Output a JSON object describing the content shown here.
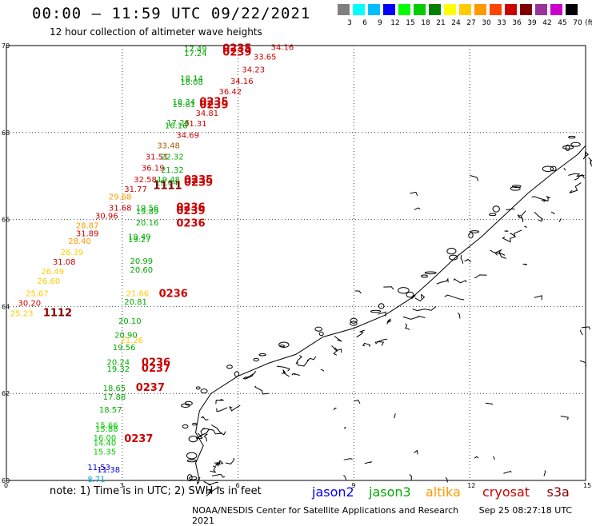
{
  "header": {
    "title": "00:00 – 11:59 UTC 09/22/2021",
    "subtitle": "12 hour collection of altimeter wave heights"
  },
  "scale": {
    "unit": "(ft)",
    "labels": [
      "3",
      "6",
      "9",
      "12",
      "15",
      "18",
      "21",
      "24",
      "27",
      "30",
      "33",
      "36",
      "39",
      "42",
      "45",
      "70"
    ],
    "colors": [
      "#808080",
      "#00ffff",
      "#00bfff",
      "#0000ff",
      "#00ff00",
      "#00cc00",
      "#008000",
      "#ffff00",
      "#ffcc00",
      "#ff9900",
      "#ff4500",
      "#cc0000",
      "#800000",
      "#993399",
      "#cc00cc",
      "#000000"
    ]
  },
  "map": {
    "lat_labels": [
      "70",
      "68",
      "66",
      "64",
      "62",
      "60"
    ],
    "lon_labels": [
      "0",
      "3",
      "6",
      "9",
      "12",
      "15"
    ],
    "points": [
      {
        "t": "34.16",
        "c": "#cc0000",
        "lon": 6.85,
        "lat": 69.9
      },
      {
        "t": "17.49",
        "c": "#00aa00",
        "lon": 4.6,
        "lat": 69.86
      },
      {
        "t": "0235",
        "c": "#cc0000",
        "lon": 5.6,
        "lat": 69.86,
        "b": 1
      },
      {
        "t": "17.24",
        "c": "#00aa00",
        "lon": 4.6,
        "lat": 69.76
      },
      {
        "t": "0239",
        "c": "#cc0000",
        "lon": 5.6,
        "lat": 69.77,
        "b": 1
      },
      {
        "t": "33.65",
        "c": "#cc0000",
        "lon": 6.4,
        "lat": 69.68
      },
      {
        "t": "34.23",
        "c": "#cc0000",
        "lon": 6.1,
        "lat": 69.38
      },
      {
        "t": "18.14",
        "c": "#00aa00",
        "lon": 4.5,
        "lat": 69.18
      },
      {
        "t": "18.08",
        "c": "#00aa00",
        "lon": 4.5,
        "lat": 69.1
      },
      {
        "t": "34.16",
        "c": "#cc0000",
        "lon": 5.8,
        "lat": 69.12
      },
      {
        "t": "36.42",
        "c": "#cc0000",
        "lon": 5.5,
        "lat": 68.88
      },
      {
        "t": "18.34",
        "c": "#00aa00",
        "lon": 4.3,
        "lat": 68.64
      },
      {
        "t": "0235",
        "c": "#cc0000",
        "lon": 5.0,
        "lat": 68.63,
        "b": 1
      },
      {
        "t": "15.81",
        "c": "#00aa00",
        "lon": 4.3,
        "lat": 68.58
      },
      {
        "t": "0239",
        "c": "#cc0000",
        "lon": 5.0,
        "lat": 68.56,
        "b": 1
      },
      {
        "t": "34.81",
        "c": "#cc0000",
        "lon": 4.9,
        "lat": 68.38
      },
      {
        "t": "17.26",
        "c": "#00aa00",
        "lon": 4.15,
        "lat": 68.16
      },
      {
        "t": "31.31",
        "c": "#cc0000",
        "lon": 4.6,
        "lat": 68.14
      },
      {
        "t": "16.16",
        "c": "#00aa00",
        "lon": 4.1,
        "lat": 68.1
      },
      {
        "t": "34.69",
        "c": "#cc0000",
        "lon": 4.4,
        "lat": 67.88
      },
      {
        "t": "33.48",
        "c": "#aa5500",
        "lon": 3.9,
        "lat": 67.64
      },
      {
        "t": "31.51",
        "c": "#cc0000",
        "lon": 3.6,
        "lat": 67.38
      },
      {
        "t": "22.32",
        "c": "#00aa00",
        "lon": 4.0,
        "lat": 67.38
      },
      {
        "t": "36.19",
        "c": "#cc0000",
        "lon": 3.5,
        "lat": 67.12
      },
      {
        "t": "21.32",
        "c": "#00aa00",
        "lon": 4.0,
        "lat": 67.08
      },
      {
        "t": "32.58",
        "c": "#cc0000",
        "lon": 3.3,
        "lat": 66.86
      },
      {
        "t": "19.48",
        "c": "#00aa00",
        "lon": 3.9,
        "lat": 66.86
      },
      {
        "t": "0235",
        "c": "#cc0000",
        "lon": 4.6,
        "lat": 66.84,
        "b": 1
      },
      {
        "t": "19.04",
        "c": "#00aa00",
        "lon": 3.85,
        "lat": 66.78
      },
      {
        "t": "0239",
        "c": "#cc0000",
        "lon": 4.6,
        "lat": 66.77,
        "b": 1
      },
      {
        "t": "1111",
        "c": "#880000",
        "lon": 3.8,
        "lat": 66.7,
        "b": 1
      },
      {
        "t": "31.77",
        "c": "#cc0000",
        "lon": 3.05,
        "lat": 66.64
      },
      {
        "t": "29.68",
        "c": "#ff9900",
        "lon": 2.65,
        "lat": 66.46
      },
      {
        "t": "31.68",
        "c": "#cc0000",
        "lon": 2.65,
        "lat": 66.2
      },
      {
        "t": "19.56",
        "c": "#00aa00",
        "lon": 3.35,
        "lat": 66.2
      },
      {
        "t": "0236",
        "c": "#cc0000",
        "lon": 4.4,
        "lat": 66.2,
        "b": 1
      },
      {
        "t": "19.89",
        "c": "#00aa00",
        "lon": 3.35,
        "lat": 66.12
      },
      {
        "t": "0239",
        "c": "#cc0000",
        "lon": 4.4,
        "lat": 66.12,
        "b": 1
      },
      {
        "t": "30.96",
        "c": "#cc0000",
        "lon": 2.3,
        "lat": 66.02
      },
      {
        "t": "28.87",
        "c": "#ff9900",
        "lon": 1.8,
        "lat": 65.8
      },
      {
        "t": "20.16",
        "c": "#00aa00",
        "lon": 3.35,
        "lat": 65.86
      },
      {
        "t": "0236",
        "c": "#cc0000",
        "lon": 4.4,
        "lat": 65.84,
        "b": 1
      },
      {
        "t": "31.89",
        "c": "#cc0000",
        "lon": 1.8,
        "lat": 65.62
      },
      {
        "t": "19.49",
        "c": "#00aa00",
        "lon": 3.15,
        "lat": 65.54
      },
      {
        "t": "19.27",
        "c": "#00aa00",
        "lon": 3.15,
        "lat": 65.48
      },
      {
        "t": "28.40",
        "c": "#ff9900",
        "lon": 1.6,
        "lat": 65.44
      },
      {
        "t": "26.39",
        "c": "#ffcc00",
        "lon": 1.4,
        "lat": 65.18
      },
      {
        "t": "31.08",
        "c": "#cc0000",
        "lon": 1.2,
        "lat": 64.96
      },
      {
        "t": "20.99",
        "c": "#00aa00",
        "lon": 3.2,
        "lat": 64.98
      },
      {
        "t": "26.49",
        "c": "#ffcc00",
        "lon": 0.9,
        "lat": 64.74
      },
      {
        "t": "20.60",
        "c": "#00aa00",
        "lon": 3.2,
        "lat": 64.78
      },
      {
        "t": "26.60",
        "c": "#ffcc00",
        "lon": 0.8,
        "lat": 64.52
      },
      {
        "t": "25.67",
        "c": "#ffcc00",
        "lon": 0.5,
        "lat": 64.24
      },
      {
        "t": "21.66",
        "c": "#ffcc00",
        "lon": 3.1,
        "lat": 64.24
      },
      {
        "t": "0236",
        "c": "#cc0000",
        "lon": 3.95,
        "lat": 64.22,
        "b": 1
      },
      {
        "t": "20.81",
        "c": "#00aa00",
        "lon": 3.05,
        "lat": 64.04
      },
      {
        "t": "30.20",
        "c": "#cc0000",
        "lon": 0.3,
        "lat": 64.02
      },
      {
        "t": "25.23",
        "c": "#ffcc00",
        "lon": 0.1,
        "lat": 63.78
      },
      {
        "t": "1112",
        "c": "#880000",
        "lon": 0.95,
        "lat": 63.78,
        "b": 1
      },
      {
        "t": "20.10",
        "c": "#00aa00",
        "lon": 2.9,
        "lat": 63.6
      },
      {
        "t": "20.90",
        "c": "#00aa00",
        "lon": 2.8,
        "lat": 63.28
      },
      {
        "t": "21.26",
        "c": "#ffcc00",
        "lon": 2.95,
        "lat": 63.16
      },
      {
        "t": "19.56",
        "c": "#00aa00",
        "lon": 2.75,
        "lat": 63.0
      },
      {
        "t": "20.24",
        "c": "#00aa00",
        "lon": 2.6,
        "lat": 62.66
      },
      {
        "t": "0236",
        "c": "#cc0000",
        "lon": 3.5,
        "lat": 62.64,
        "b": 1
      },
      {
        "t": "19.32",
        "c": "#00aa00",
        "lon": 2.6,
        "lat": 62.5
      },
      {
        "t": "0237",
        "c": "#cc0000",
        "lon": 3.5,
        "lat": 62.5,
        "b": 1
      },
      {
        "t": "18.65",
        "c": "#00aa00",
        "lon": 2.5,
        "lat": 62.06
      },
      {
        "t": "0237",
        "c": "#cc0000",
        "lon": 3.35,
        "lat": 62.06,
        "b": 1
      },
      {
        "t": "17.88",
        "c": "#00aa00",
        "lon": 2.5,
        "lat": 61.86
      },
      {
        "t": "18.57",
        "c": "#00aa00",
        "lon": 2.4,
        "lat": 61.56
      },
      {
        "t": "15.66",
        "c": "#00cc00",
        "lon": 2.3,
        "lat": 61.2
      },
      {
        "t": "15.88",
        "c": "#00cc00",
        "lon": 2.3,
        "lat": 61.12
      },
      {
        "t": "16.00",
        "c": "#00cc00",
        "lon": 2.25,
        "lat": 60.92
      },
      {
        "t": "0237",
        "c": "#cc0000",
        "lon": 3.05,
        "lat": 60.88,
        "b": 1
      },
      {
        "t": "14.40",
        "c": "#00cc00",
        "lon": 2.25,
        "lat": 60.8
      },
      {
        "t": "15.35",
        "c": "#00cc00",
        "lon": 2.25,
        "lat": 60.6
      },
      {
        "t": "11.53",
        "c": "#0000cc",
        "lon": 2.1,
        "lat": 60.24
      },
      {
        "t": "11.38",
        "c": "#0000cc",
        "lon": 2.35,
        "lat": 60.18
      },
      {
        "t": "8.71",
        "c": "#00aacc",
        "lon": 2.1,
        "lat": 59.96
      }
    ]
  },
  "legend": {
    "note": "note:  1) Time is in UTC;  2) SWH is in feet",
    "satellites": [
      {
        "name": "jason2",
        "color": "#0000ff"
      },
      {
        "name": "jason3",
        "color": "#00aa00"
      },
      {
        "name": "altika",
        "color": "#ff9900"
      },
      {
        "name": "cryosat",
        "color": "#cc0000"
      },
      {
        "name": "s3a",
        "color": "#880000"
      }
    ]
  },
  "credit": {
    "center": "NOAA/NESDIS Center for Satellite Applications and Research",
    "timestamp": "Sep 25 08:27:18 UTC 2021"
  }
}
